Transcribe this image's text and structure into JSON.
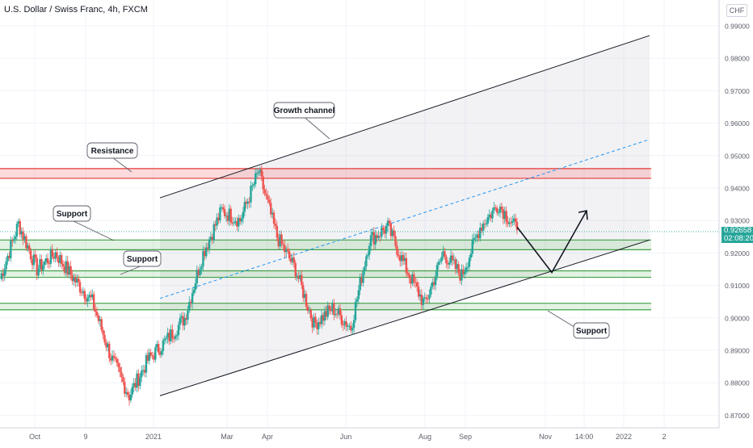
{
  "header": {
    "title": "U.S. Dollar / Swiss Franc, 4h, FXCM",
    "currency": "CHF"
  },
  "price_tag": {
    "price": "0.92658",
    "countdown": "02:08:20"
  },
  "annotations": {
    "growth_channel": "Growth channel",
    "resistance": "Resistance",
    "support_1": "Support",
    "support_2": "Support",
    "support_3": "Support"
  },
  "chart_data": {
    "type": "line",
    "title": "U.S. Dollar / Swiss Franc, 4h, FXCM",
    "xlabel": "",
    "ylabel": "",
    "y_ticks": [
      "0.99000",
      "0.98000",
      "0.97000",
      "0.96000",
      "0.95000",
      "0.94000",
      "0.93000",
      "0.92000",
      "0.91000",
      "0.90000",
      "0.89000",
      "0.88000",
      "0.87000"
    ],
    "ylim": [
      0.865,
      1.0
    ],
    "x_ticks": [
      "Oct",
      "9",
      "2021",
      "Mar",
      "Apr",
      "Jun",
      "Aug",
      "Sep",
      "Nov",
      "14:00",
      "2022",
      "2"
    ],
    "last_price": 0.92658,
    "series": [
      {
        "x": [
          "Sep 2020",
          "Oct",
          "Oct",
          "Nov",
          "Nov",
          "Dec",
          "Dec",
          "Jan",
          "Jan",
          "Feb",
          "Feb",
          "Mar",
          "Mar",
          "Mar",
          "Apr",
          "Apr",
          "May",
          "May",
          "May",
          "Jun",
          "Jun",
          "Jul",
          "Jul",
          "Aug",
          "Aug",
          "Sep",
          "Sep",
          "Sep",
          "Oct"
        ],
        "values": [
          0.912,
          0.929,
          0.915,
          0.92,
          0.912,
          0.905,
          0.888,
          0.876,
          0.887,
          0.893,
          0.9,
          0.92,
          0.933,
          0.93,
          0.945,
          0.925,
          0.915,
          0.898,
          0.903,
          0.897,
          0.924,
          0.928,
          0.915,
          0.904,
          0.92,
          0.913,
          0.928,
          0.935,
          0.927
        ]
      }
    ],
    "zones": {
      "resistance": [
        0.943,
        0.946
      ],
      "support_upper": [
        0.921,
        0.924
      ],
      "support_mid": [
        0.9125,
        0.9145
      ],
      "support_low": [
        0.9025,
        0.9045
      ]
    },
    "channel": {
      "lower": {
        "start": [
          "Jan",
          0.876
        ],
        "end": [
          "Dec",
          0.924
        ]
      },
      "upper": {
        "start": [
          "Jan",
          0.937
        ],
        "end": [
          "Dec",
          0.987
        ]
      },
      "mid": {
        "start": [
          "Jan",
          0.906
        ],
        "end": [
          "Dec",
          0.955
        ]
      }
    },
    "projection": {
      "values": [
        0.928,
        0.914,
        0.933
      ]
    },
    "grid": true
  }
}
